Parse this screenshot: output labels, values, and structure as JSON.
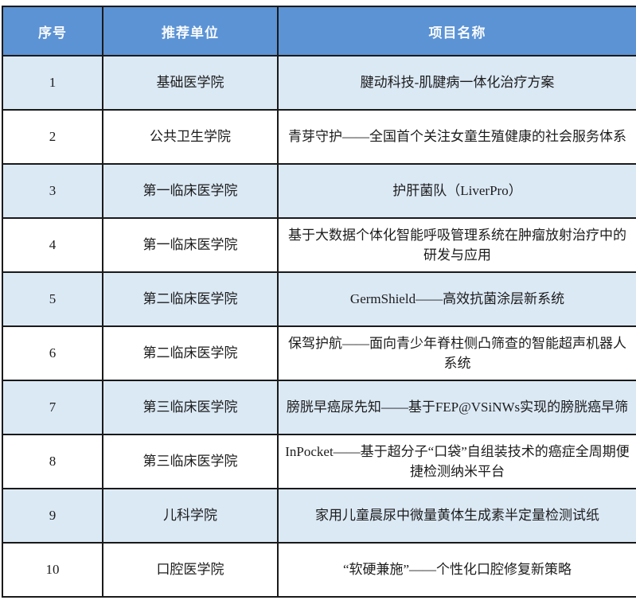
{
  "colors": {
    "header_bg": "#5b93d5",
    "header_text": "#f7f9fb",
    "row_alt_bg": "#dbe9f5",
    "row_bg": "#ffffff",
    "border": "#1a1a1a",
    "body_text": "#1c1c1c"
  },
  "table": {
    "columns": [
      {
        "label": "序号"
      },
      {
        "label": "推荐单位"
      },
      {
        "label": "项目名称"
      }
    ],
    "rows": [
      {
        "no": "1",
        "unit": "基础医学院",
        "project": "腱动科技-肌腱病一体化治疗方案"
      },
      {
        "no": "2",
        "unit": "公共卫生学院",
        "project": "青芽守护——全国首个关注女童生殖健康的社会服务体系"
      },
      {
        "no": "3",
        "unit": "第一临床医学院",
        "project": "护肝菌队（LiverPro）"
      },
      {
        "no": "4",
        "unit": "第一临床医学院",
        "project": "基于大数据个体化智能呼吸管理系统在肿瘤放射治疗中的研发与应用"
      },
      {
        "no": "5",
        "unit": "第二临床医学院",
        "project": "GermShield——高效抗菌涂层新系统"
      },
      {
        "no": "6",
        "unit": "第二临床医学院",
        "project": "保驾护航——面向青少年脊柱侧凸筛查的智能超声机器人系统"
      },
      {
        "no": "7",
        "unit": "第三临床医学院",
        "project": "膀胱早癌尿先知——基于FEP@VSiNWs实现的膀胱癌早筛"
      },
      {
        "no": "8",
        "unit": "第三临床医学院",
        "project": "InPocket——基于超分子“口袋”自组装技术的癌症全周期便捷检测纳米平台"
      },
      {
        "no": "9",
        "unit": "儿科学院",
        "project": "家用儿童晨尿中微量黄体生成素半定量检测试纸"
      },
      {
        "no": "10",
        "unit": "口腔医学院",
        "project": "“软硬兼施”——个性化口腔修复新策略"
      }
    ]
  }
}
